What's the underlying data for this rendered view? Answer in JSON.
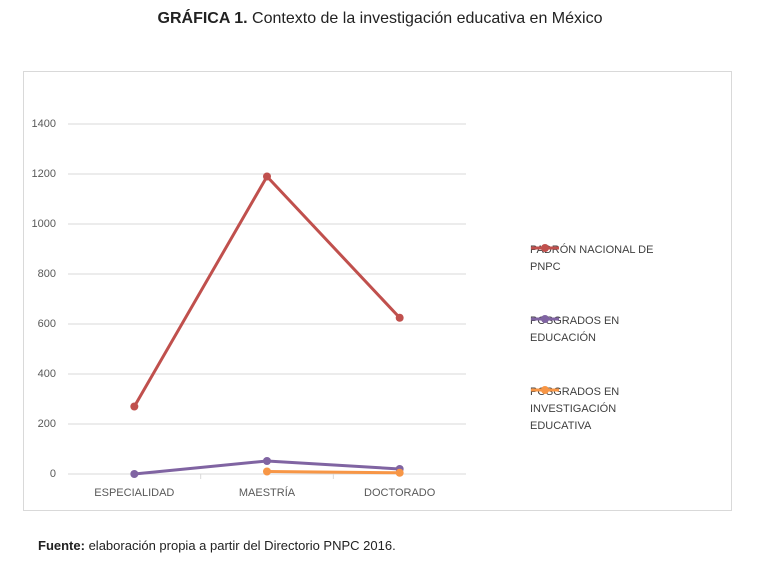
{
  "chart_data": {
    "type": "line",
    "title_prefix": "GRÁFICA 1.",
    "title": "Contexto de la investigación educativa en México",
    "categories": [
      "ESPECIALIDAD",
      "MAESTRÍA",
      "DOCTORADO"
    ],
    "series": [
      {
        "name": "PADRÓN NACIONAL DE PNPC",
        "color": "#c0504d",
        "values": [
          270,
          1190,
          625
        ]
      },
      {
        "name": "POSGRADOS EN EDUCACIÓN",
        "color": "#8064a2",
        "values": [
          0,
          52,
          20
        ]
      },
      {
        "name": "POSGRADOS EN INVESTIGACIÓN EDUCATIVA",
        "color": "#f79646",
        "values": [
          null,
          10,
          5
        ]
      }
    ],
    "ylim": [
      0,
      1400
    ],
    "yticks": [
      0,
      200,
      400,
      600,
      800,
      1000,
      1200,
      1400
    ],
    "grid": true,
    "legend": "right",
    "source_label": "Fuente:",
    "source": "elaboración propia a partir del Directorio PNPC 2016."
  }
}
